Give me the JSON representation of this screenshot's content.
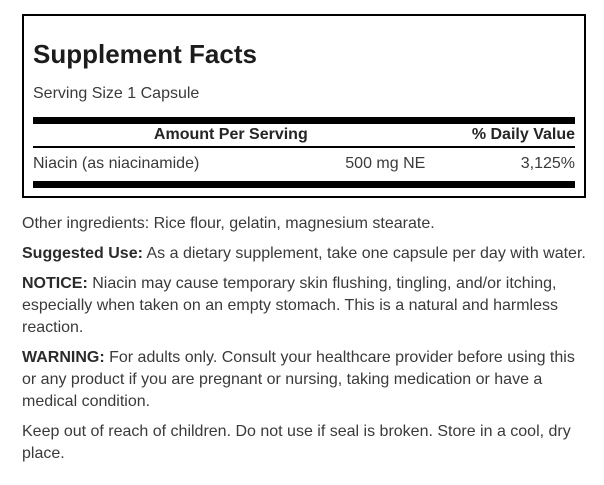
{
  "facts": {
    "title": "Supplement Facts",
    "serving_size": "Serving Size 1 Capsule",
    "header": {
      "amount": "Amount Per Serving",
      "daily_value": "% Daily Value"
    },
    "rows": [
      {
        "name": "Niacin (as niacinamide)",
        "amount": "500 mg NE",
        "daily_value": "3,125%"
      }
    ]
  },
  "sections": {
    "other_ingredients": "Other ingredients: Rice flour, gelatin, magnesium stearate.",
    "suggested_use_label": "Suggested Use:",
    "suggested_use_text": " As a dietary supplement, take one capsule per day with water.",
    "notice_label": "NOTICE:",
    "notice_text": " Niacin may cause temporary skin flushing, tingling, and/or itching, especially when taken on an empty stomach. This is a natural and harmless reaction.",
    "warning_label": "WARNING:",
    "warning_text": " For adults only. Consult your healthcare provider before using this or any product if you are pregnant or nursing, taking medication or have a medical condition.",
    "storage": "Keep out of reach of children. Do not use if seal is broken. Store in a cool, dry place."
  },
  "colors": {
    "rule": "#000000",
    "body_text": "#3a3a3a",
    "heading": "#1c1c1c"
  }
}
